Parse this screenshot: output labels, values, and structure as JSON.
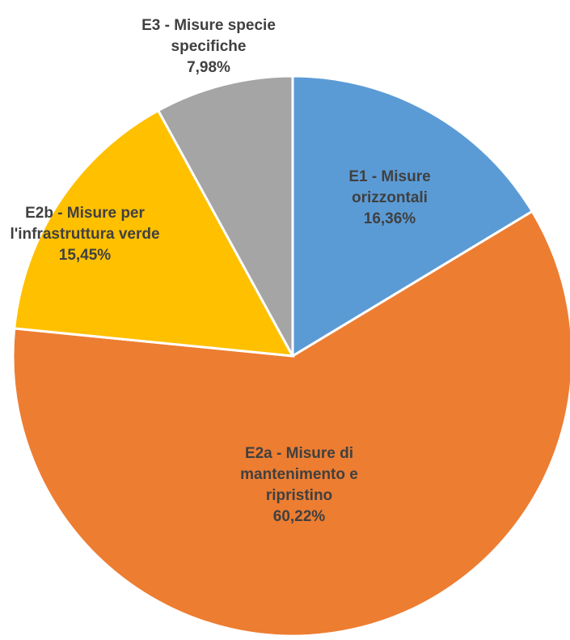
{
  "chart_data": {
    "type": "pie",
    "categories": [
      "E1 - Misure orizzontali",
      "E2a - Misure di mantenimento e ripristino",
      "E2b - Misure per l'infrastruttura verde",
      "E3 - Misure specie specifiche"
    ],
    "values": [
      16.36,
      60.22,
      15.45,
      7.98
    ],
    "value_labels": [
      "16,36%",
      "60,22%",
      "15,45%",
      "7,98%"
    ],
    "colors": [
      "#5b9bd5",
      "#ed7d31",
      "#ffc000",
      "#a5a5a5"
    ]
  }
}
